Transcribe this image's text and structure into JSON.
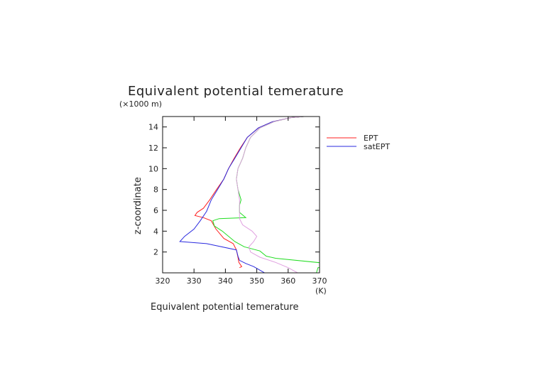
{
  "chart_data": {
    "type": "line",
    "title": "Equivalent potential temerature",
    "xlabel": "Equivalent potential temerature",
    "xunit": "(K)",
    "ylabel": "z-coordinate",
    "yunit": "(×1000 m)",
    "xlim": [
      320,
      370
    ],
    "ylim": [
      0,
      15
    ],
    "xticks": [
      320,
      330,
      340,
      350,
      360,
      370
    ],
    "yticks": [
      2,
      4,
      6,
      8,
      10,
      12,
      14
    ],
    "grid": false,
    "legend_position": "right",
    "series": [
      {
        "name": "EPT",
        "color": "#ff2020",
        "points": [
          [
            344.5,
            0.5
          ],
          [
            345.2,
            0.6
          ],
          [
            344.3,
            1.0
          ],
          [
            344.0,
            1.5
          ],
          [
            343.5,
            2.2
          ],
          [
            342.5,
            2.8
          ],
          [
            339.5,
            3.3
          ],
          [
            337.0,
            4.2
          ],
          [
            335.5,
            5.0
          ],
          [
            333.0,
            5.3
          ],
          [
            330.3,
            5.5
          ],
          [
            331.0,
            5.8
          ],
          [
            333.0,
            6.2
          ],
          [
            335.0,
            7.0
          ],
          [
            337.2,
            8.0
          ],
          [
            339.5,
            9.0
          ],
          [
            341.0,
            10.0
          ],
          [
            342.8,
            11.0
          ],
          [
            344.8,
            12.0
          ],
          [
            347.0,
            13.0
          ],
          [
            350.5,
            13.9
          ],
          [
            355.0,
            14.5
          ],
          [
            361.0,
            14.9
          ],
          [
            365.0,
            15.0
          ]
        ]
      },
      {
        "name": "satEPT",
        "color": "#2a2adf",
        "points": [
          [
            352.5,
            0.0
          ],
          [
            349.0,
            0.6
          ],
          [
            346.5,
            0.9
          ],
          [
            344.5,
            1.2
          ],
          [
            344.0,
            1.6
          ],
          [
            343.5,
            2.2
          ],
          [
            334.0,
            2.8
          ],
          [
            325.5,
            3.0
          ],
          [
            327.0,
            3.5
          ],
          [
            330.0,
            4.2
          ],
          [
            332.0,
            5.0
          ],
          [
            334.0,
            5.9
          ],
          [
            335.5,
            7.0
          ],
          [
            337.5,
            8.0
          ],
          [
            339.5,
            9.0
          ],
          [
            341.0,
            10.0
          ],
          [
            343.0,
            11.0
          ],
          [
            345.0,
            12.0
          ],
          [
            347.0,
            13.0
          ],
          [
            350.5,
            13.9
          ],
          [
            355.0,
            14.5
          ],
          [
            361.0,
            14.9
          ],
          [
            365.0,
            15.0
          ]
        ]
      },
      {
        "name": "",
        "color": "#22dd22",
        "points": [
          [
            369.0,
            0.0
          ],
          [
            369.5,
            0.5
          ],
          [
            374.0,
            0.6
          ],
          [
            372.5,
            0.9
          ],
          [
            356.0,
            1.4
          ],
          [
            353.0,
            1.6
          ],
          [
            351.0,
            2.1
          ],
          [
            346.0,
            2.5
          ],
          [
            343.0,
            3.0
          ],
          [
            339.0,
            4.0
          ],
          [
            336.5,
            4.5
          ],
          [
            336.0,
            5.0
          ],
          [
            338.0,
            5.2
          ],
          [
            346.5,
            5.3
          ],
          [
            344.5,
            5.8
          ],
          [
            344.5,
            6.5
          ],
          [
            345.0,
            7.0
          ],
          [
            344.5,
            7.5
          ],
          [
            344.0,
            8.0
          ],
          [
            343.5,
            9.0
          ],
          [
            344.0,
            10.0
          ],
          [
            345.5,
            11.0
          ],
          [
            346.5,
            12.0
          ],
          [
            348.0,
            13.0
          ],
          [
            351.0,
            13.9
          ],
          [
            355.5,
            14.5
          ],
          [
            361.0,
            14.9
          ],
          [
            365.0,
            15.0
          ]
        ]
      },
      {
        "name": "",
        "color": "#e0a0e0",
        "points": [
          [
            363.0,
            0.0
          ],
          [
            360.0,
            0.5
          ],
          [
            356.0,
            1.0
          ],
          [
            351.0,
            1.5
          ],
          [
            348.0,
            2.0
          ],
          [
            347.5,
            2.5
          ],
          [
            349.0,
            3.0
          ],
          [
            350.0,
            3.5
          ],
          [
            348.5,
            4.0
          ],
          [
            345.5,
            4.6
          ],
          [
            344.5,
            5.2
          ],
          [
            344.5,
            6.0
          ],
          [
            344.5,
            7.0
          ],
          [
            344.0,
            8.0
          ],
          [
            343.5,
            9.0
          ],
          [
            344.0,
            10.0
          ],
          [
            345.5,
            11.0
          ],
          [
            346.5,
            12.0
          ],
          [
            348.0,
            13.0
          ],
          [
            351.0,
            13.9
          ],
          [
            355.5,
            14.5
          ],
          [
            361.0,
            14.9
          ],
          [
            365.0,
            15.0
          ]
        ]
      }
    ]
  }
}
